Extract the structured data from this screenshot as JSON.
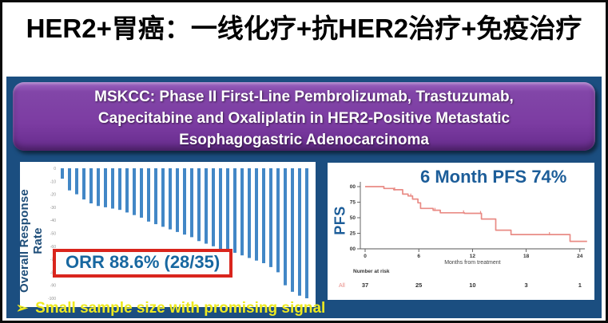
{
  "slide": {
    "title": "HER2+胃癌：一线化疗+抗HER2治疗+免疫治疗",
    "header": {
      "text": "MSKCC: Phase II First-Line Pembrolizumab, Trastuzumab, Capecitabine and Oxaliplatin in HER2-Positive Metastatic Esophagogastric Adenocarcinoma",
      "lines": [
        "MSKCC: Phase II First-Line Pembrolizumab, Trastuzumab,",
        "Capecitabine and Oxaliplatin in HER2-Positive Metastatic",
        "Esophagogastric Adenocarcinoma"
      ]
    },
    "footnote": {
      "bullet_icon": "➢",
      "text": "Small sample size with promising signal"
    }
  },
  "colors": {
    "navy_bg": "#1B4E80",
    "purple_banner": "#7C3CA2",
    "bar_blue": "#4287C6",
    "dark_blue_text": "#1C5D99",
    "orr_text": "#1767A0",
    "red_accent": "#D9251D",
    "km_curve": "#E98B85",
    "yellow_text": "#EEE91F",
    "axis_gray": "#555555"
  },
  "chart_data": [
    {
      "type": "bar",
      "subtype": "waterfall",
      "title": "",
      "ylabel": "Overall Response Rate",
      "xlabel": "",
      "ylim": [
        -100,
        0
      ],
      "yticks": [
        0,
        -10,
        -20,
        -30,
        -40,
        -50,
        -60,
        -70,
        -80,
        -90,
        -100
      ],
      "grid": false,
      "bar_color": "#4287C6",
      "values": [
        -8,
        -17,
        -20,
        -24,
        -27,
        -29,
        -30,
        -31,
        -32,
        -34,
        -36,
        -38,
        -41,
        -43,
        -45,
        -47,
        -49,
        -51,
        -53,
        -56,
        -58,
        -60,
        -62,
        -63,
        -65,
        -67,
        -69,
        -71,
        -73,
        -76,
        -80,
        -90,
        -95,
        -98,
        -100
      ],
      "annotation": "ORR 88.6% (28/35)"
    },
    {
      "type": "line",
      "subtype": "kaplan_meier_step",
      "title": "6 Month PFS 74%",
      "ylabel": "PFS",
      "xlabel": "Months from treatment",
      "xlim": [
        0,
        25
      ],
      "ylim": [
        0,
        100
      ],
      "xticks": [
        0,
        6,
        12,
        18,
        24
      ],
      "yticks": [
        {
          "label": "00",
          "value": 100
        },
        {
          "label": "75",
          "value": 75
        },
        {
          "label": "50",
          "value": 50
        },
        {
          "label": "25",
          "value": 25
        },
        {
          "label": "00",
          "value": 0
        }
      ],
      "legend": false,
      "series": [
        {
          "name": "All",
          "color": "#E98B85",
          "points": [
            [
              0,
              100
            ],
            [
              2.1,
              100
            ],
            [
              2.1,
              97
            ],
            [
              3.2,
              97
            ],
            [
              3.2,
              95
            ],
            [
              4.2,
              95
            ],
            [
              4.2,
              88
            ],
            [
              4.8,
              88
            ],
            [
              4.8,
              85
            ],
            [
              5.3,
              85
            ],
            [
              5.3,
              80
            ],
            [
              5.9,
              80
            ],
            [
              5.9,
              74
            ],
            [
              6.2,
              74
            ],
            [
              6.2,
              65
            ],
            [
              7.6,
              65
            ],
            [
              7.6,
              62
            ],
            [
              8.4,
              62
            ],
            [
              8.4,
              58
            ],
            [
              11.1,
              58
            ],
            [
              11.1,
              57
            ],
            [
              13,
              57
            ],
            [
              13,
              48
            ],
            [
              14.6,
              48
            ],
            [
              14.6,
              30
            ],
            [
              16.3,
              30
            ],
            [
              16.3,
              23
            ],
            [
              22.9,
              23
            ],
            [
              22.9,
              12
            ],
            [
              24.8,
              12
            ]
          ]
        }
      ],
      "censor_marks": [
        [
          3.3,
          95
        ],
        [
          5.1,
          85
        ],
        [
          7.8,
          62
        ],
        [
          11,
          58
        ],
        [
          12.9,
          57
        ],
        [
          20.6,
          23
        ]
      ],
      "number_at_risk": {
        "label": "Number at risk",
        "group": "All",
        "values": [
          "37",
          "25",
          "10",
          "3",
          "1"
        ]
      }
    }
  ]
}
